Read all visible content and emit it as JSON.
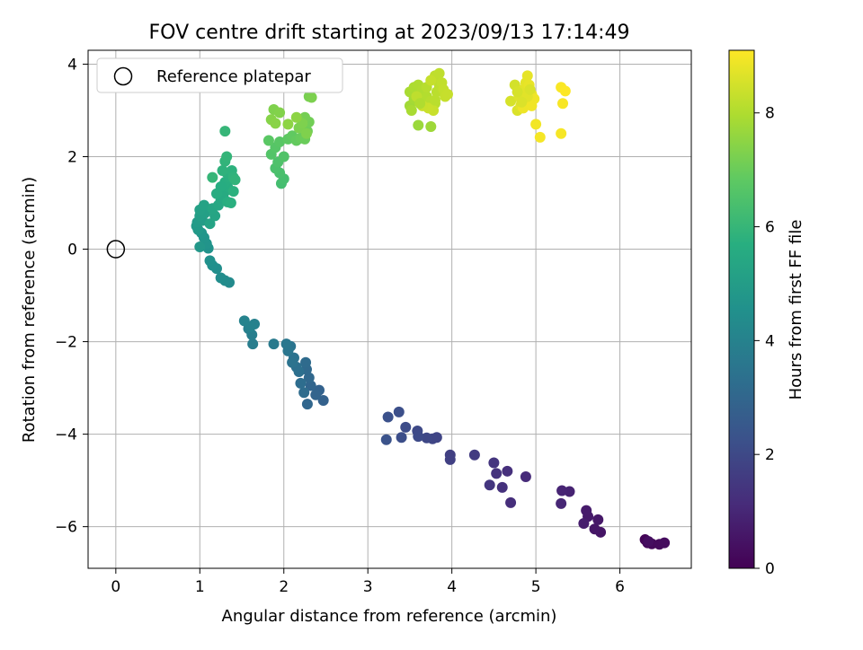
{
  "chart_data": {
    "type": "scatter",
    "title": "FOV centre drift starting at 2023/09/13 17:14:49",
    "xlabel": "Angular distance from reference (arcmin)",
    "ylabel": "Rotation from reference (arcmin)",
    "xlim": [
      -0.33,
      6.85
    ],
    "ylim": [
      -6.9,
      4.3
    ],
    "xticks": [
      0,
      1,
      2,
      3,
      4,
      5,
      6
    ],
    "yticks": [
      -6,
      -4,
      -2,
      0,
      2,
      4
    ],
    "grid": true,
    "legend": {
      "placement": "top-left",
      "entries": [
        "Reference platepar"
      ]
    },
    "reference_point": {
      "x": 0,
      "y": 0,
      "marker": "open-circle"
    },
    "colorbar": {
      "label": "Hours from first FF file",
      "colormap": "viridis",
      "range": [
        0,
        9.1
      ],
      "ticks": [
        0,
        2,
        4,
        6,
        8
      ]
    },
    "colormap_stops": [
      "#440154",
      "#472c7a",
      "#3b528b",
      "#2c728e",
      "#21918c",
      "#28ae80",
      "#5ec962",
      "#addc30",
      "#fde725"
    ],
    "series": [
      {
        "points": [
          [
            6.3,
            -6.28,
            0.1
          ],
          [
            6.33,
            -6.35,
            0.15
          ],
          [
            6.38,
            -6.37,
            0.2
          ],
          [
            6.47,
            -6.38,
            0.25
          ],
          [
            6.53,
            -6.35,
            0.3
          ],
          [
            6.34,
            -6.32,
            0.35
          ],
          [
            5.77,
            -6.12,
            0.5
          ],
          [
            5.7,
            -6.05,
            0.55
          ],
          [
            5.74,
            -5.85,
            0.6
          ],
          [
            5.62,
            -5.78,
            0.65
          ],
          [
            5.6,
            -5.65,
            0.7
          ],
          [
            5.57,
            -5.93,
            0.75
          ],
          [
            5.4,
            -5.24,
            0.9
          ],
          [
            5.31,
            -5.22,
            0.95
          ],
          [
            5.3,
            -5.5,
            1.0
          ],
          [
            4.88,
            -4.92,
            1.1
          ],
          [
            4.7,
            -5.48,
            1.2
          ],
          [
            4.66,
            -4.8,
            1.25
          ],
          [
            4.6,
            -5.15,
            1.3
          ],
          [
            4.53,
            -4.85,
            1.35
          ],
          [
            4.5,
            -4.62,
            1.4
          ],
          [
            4.45,
            -5.1,
            1.45
          ],
          [
            4.27,
            -4.45,
            1.6
          ],
          [
            3.98,
            -4.45,
            1.7
          ],
          [
            3.98,
            -4.55,
            1.75
          ],
          [
            3.82,
            -4.07,
            1.85
          ],
          [
            3.77,
            -4.1,
            1.9
          ],
          [
            3.7,
            -4.08,
            1.95
          ],
          [
            3.59,
            -3.93,
            2.0
          ],
          [
            3.6,
            -4.05,
            2.05
          ],
          [
            3.45,
            -3.85,
            2.1
          ],
          [
            3.4,
            -4.07,
            2.15
          ],
          [
            3.37,
            -3.52,
            2.2
          ],
          [
            3.24,
            -3.63,
            2.25
          ],
          [
            3.22,
            -4.12,
            2.3
          ],
          [
            2.47,
            -3.27,
            2.8
          ],
          [
            2.42,
            -3.05,
            2.85
          ],
          [
            2.38,
            -3.15,
            2.9
          ],
          [
            2.32,
            -2.95,
            2.95
          ],
          [
            2.28,
            -3.35,
            3.0
          ],
          [
            2.3,
            -2.78,
            3.05
          ],
          [
            2.27,
            -2.6,
            3.1
          ],
          [
            2.26,
            -2.45,
            3.15
          ],
          [
            2.24,
            -3.1,
            3.2
          ],
          [
            2.2,
            -2.9,
            3.25
          ],
          [
            2.18,
            -2.65,
            3.3
          ],
          [
            2.15,
            -2.55,
            3.35
          ],
          [
            2.12,
            -2.35,
            3.4
          ],
          [
            2.1,
            -2.45,
            3.45
          ],
          [
            2.08,
            -2.1,
            3.5
          ],
          [
            2.05,
            -2.2,
            3.55
          ],
          [
            2.03,
            -2.05,
            3.6
          ],
          [
            1.88,
            -2.05,
            3.7
          ],
          [
            1.63,
            -2.05,
            3.8
          ],
          [
            1.62,
            -1.85,
            3.85
          ],
          [
            1.58,
            -1.72,
            3.9
          ],
          [
            1.65,
            -1.62,
            3.95
          ],
          [
            1.6,
            -1.68,
            4.0
          ],
          [
            1.53,
            -1.55,
            4.05
          ],
          [
            1.35,
            -0.72,
            4.3
          ],
          [
            1.3,
            -0.68,
            4.35
          ],
          [
            1.25,
            -0.62,
            4.4
          ],
          [
            1.2,
            -0.42,
            4.45
          ],
          [
            1.15,
            -0.35,
            4.5
          ],
          [
            1.12,
            -0.25,
            4.55
          ],
          [
            1.1,
            0.02,
            4.6
          ],
          [
            1.08,
            0.12,
            4.65
          ],
          [
            1.05,
            0.25,
            4.7
          ],
          [
            1.02,
            0.35,
            4.75
          ],
          [
            1.0,
            0.05,
            4.8
          ],
          [
            0.98,
            0.42,
            4.85
          ],
          [
            0.96,
            0.5,
            4.9
          ],
          [
            0.97,
            0.58,
            4.95
          ],
          [
            1.03,
            0.62,
            5.0
          ],
          [
            1.0,
            0.72,
            5.05
          ],
          [
            1.06,
            0.78,
            5.1
          ],
          [
            1.0,
            0.85,
            5.15
          ],
          [
            1.05,
            0.95,
            5.2
          ],
          [
            1.12,
            0.55,
            5.25
          ],
          [
            1.18,
            0.72,
            5.3
          ],
          [
            1.15,
            0.88,
            5.35
          ],
          [
            1.22,
            0.95,
            5.4
          ],
          [
            1.25,
            1.05,
            5.45
          ],
          [
            1.28,
            1.12,
            5.5
          ],
          [
            1.3,
            1.25,
            5.55
          ],
          [
            1.33,
            1.35,
            5.6
          ],
          [
            1.3,
            1.45,
            5.65
          ],
          [
            1.35,
            1.55,
            5.7
          ],
          [
            1.32,
            1.65,
            5.75
          ],
          [
            1.38,
            1.7,
            5.8
          ],
          [
            1.4,
            1.55,
            5.85
          ],
          [
            1.42,
            1.5,
            5.9
          ],
          [
            1.25,
            1.35,
            5.6
          ],
          [
            1.2,
            1.2,
            5.62
          ],
          [
            1.33,
            1.02,
            5.68
          ],
          [
            1.37,
            1.0,
            5.72
          ],
          [
            1.4,
            1.25,
            5.78
          ],
          [
            1.27,
            1.7,
            5.83
          ],
          [
            1.3,
            1.9,
            5.9
          ],
          [
            1.32,
            2.0,
            5.95
          ],
          [
            1.15,
            1.55,
            5.98
          ],
          [
            1.3,
            2.55,
            6.0
          ],
          [
            1.97,
            1.42,
            6.3
          ],
          [
            2.0,
            1.52,
            6.35
          ],
          [
            1.95,
            1.65,
            6.4
          ],
          [
            1.9,
            1.75,
            6.45
          ],
          [
            1.93,
            1.88,
            6.5
          ],
          [
            2.0,
            2.0,
            6.55
          ],
          [
            1.85,
            2.05,
            6.6
          ],
          [
            1.9,
            2.2,
            6.65
          ],
          [
            1.95,
            2.32,
            6.7
          ],
          [
            1.82,
            2.35,
            6.75
          ],
          [
            2.05,
            2.38,
            6.8
          ],
          [
            2.1,
            2.45,
            6.85
          ],
          [
            2.15,
            2.35,
            6.9
          ],
          [
            2.2,
            2.4,
            6.95
          ],
          [
            2.25,
            2.38,
            7.0
          ],
          [
            2.28,
            2.55,
            7.05
          ],
          [
            2.3,
            2.75,
            7.1
          ],
          [
            2.25,
            2.85,
            7.15
          ],
          [
            2.3,
            3.3,
            7.2
          ],
          [
            2.33,
            3.28,
            7.25
          ],
          [
            2.18,
            2.62,
            7.25
          ],
          [
            2.22,
            2.72,
            7.28
          ],
          [
            2.27,
            2.5,
            7.3
          ],
          [
            1.88,
            3.02,
            7.3
          ],
          [
            1.95,
            2.95,
            7.35
          ],
          [
            1.85,
            2.8,
            7.4
          ],
          [
            1.9,
            2.72,
            7.45
          ],
          [
            2.05,
            2.7,
            7.5
          ],
          [
            2.15,
            2.85,
            7.5
          ],
          [
            3.6,
            2.68,
            7.7
          ],
          [
            3.75,
            2.65,
            7.75
          ],
          [
            3.5,
            3.1,
            7.8
          ],
          [
            3.55,
            3.25,
            7.85
          ],
          [
            3.5,
            3.4,
            7.9
          ],
          [
            3.55,
            3.5,
            7.95
          ],
          [
            3.6,
            3.55,
            7.98
          ],
          [
            3.65,
            3.45,
            8.0
          ],
          [
            3.7,
            3.3,
            8.05
          ],
          [
            3.75,
            3.2,
            8.1
          ],
          [
            3.8,
            3.15,
            8.12
          ],
          [
            3.82,
            3.4,
            8.15
          ],
          [
            3.85,
            3.55,
            8.18
          ],
          [
            3.8,
            3.75,
            8.2
          ],
          [
            3.85,
            3.8,
            8.22
          ],
          [
            3.88,
            3.6,
            8.25
          ],
          [
            3.9,
            3.45,
            8.28
          ],
          [
            3.92,
            3.3,
            8.3
          ],
          [
            3.95,
            3.35,
            8.32
          ],
          [
            3.78,
            3.0,
            8.35
          ],
          [
            3.72,
            3.05,
            8.38
          ],
          [
            3.65,
            3.1,
            8.35
          ],
          [
            3.58,
            3.3,
            8.2
          ],
          [
            3.7,
            3.5,
            8.1
          ],
          [
            3.62,
            3.15,
            8.0
          ],
          [
            3.52,
            3.0,
            7.9
          ],
          [
            3.75,
            3.65,
            8.3
          ],
          [
            3.8,
            3.22,
            8.15
          ],
          [
            4.75,
            3.55,
            8.5
          ],
          [
            4.7,
            3.2,
            8.55
          ],
          [
            4.78,
            3.0,
            8.6
          ],
          [
            4.8,
            3.3,
            8.65
          ],
          [
            4.82,
            3.1,
            8.7
          ],
          [
            4.85,
            3.45,
            8.72
          ],
          [
            4.88,
            3.6,
            8.75
          ],
          [
            4.9,
            3.75,
            8.78
          ],
          [
            4.92,
            3.55,
            8.8
          ],
          [
            4.95,
            3.35,
            8.82
          ],
          [
            4.88,
            3.2,
            8.85
          ],
          [
            4.85,
            3.05,
            8.88
          ],
          [
            4.98,
            3.25,
            8.9
          ],
          [
            4.95,
            3.1,
            8.92
          ],
          [
            5.0,
            2.7,
            8.95
          ],
          [
            5.05,
            2.42,
            8.98
          ],
          [
            4.9,
            3.3,
            8.7
          ],
          [
            4.93,
            3.45,
            8.6
          ],
          [
            5.3,
            2.5,
            9.0
          ],
          [
            5.32,
            3.15,
            9.02
          ],
          [
            5.3,
            3.5,
            9.05
          ],
          [
            5.35,
            3.42,
            9.08
          ],
          [
            4.78,
            3.4,
            8.55
          ],
          [
            4.83,
            3.18,
            8.62
          ]
        ]
      }
    ]
  }
}
